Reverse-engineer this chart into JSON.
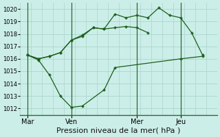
{
  "background_color": "#cceee8",
  "grid_color": "#aad4ce",
  "line_color": "#1a5c1a",
  "marker_color": "#1a5c1a",
  "xlabel": "Pression niveau de la mer( hPa )",
  "xlabel_fontsize": 8,
  "ylim": [
    1011.5,
    1020.5
  ],
  "yticks": [
    1012,
    1013,
    1014,
    1015,
    1016,
    1017,
    1018,
    1019,
    1020
  ],
  "xtick_labels": [
    "Mar",
    "Ven",
    "Mer",
    "Jeu"
  ],
  "xtick_positions": [
    0,
    24,
    60,
    84
  ],
  "vline_positions": [
    0,
    24,
    60,
    84
  ],
  "xlim": [
    -4,
    104
  ],
  "series1_x": [
    0,
    6,
    12,
    18,
    24,
    30,
    42,
    48,
    84,
    96
  ],
  "series1_y": [
    1016.3,
    1015.9,
    1014.7,
    1013.0,
    1012.1,
    1012.2,
    1013.5,
    1015.3,
    1016.0,
    1016.2
  ],
  "series2_x": [
    0,
    6,
    12,
    18,
    24,
    30,
    36,
    42,
    48,
    54,
    60,
    66
  ],
  "series2_y": [
    1016.3,
    1016.0,
    1016.2,
    1016.5,
    1017.5,
    1017.8,
    1018.5,
    1018.4,
    1018.5,
    1018.6,
    1018.5,
    1018.1
  ],
  "series3_x": [
    0,
    6,
    12,
    18,
    24,
    30,
    36,
    42,
    48,
    54,
    60,
    66,
    72,
    78,
    84,
    90,
    96
  ],
  "series3_y": [
    1016.3,
    1016.0,
    1016.2,
    1016.5,
    1017.5,
    1017.9,
    1018.5,
    1018.4,
    1019.6,
    1019.3,
    1019.5,
    1019.3,
    1020.1,
    1019.5,
    1019.3,
    1018.1,
    1016.3
  ]
}
